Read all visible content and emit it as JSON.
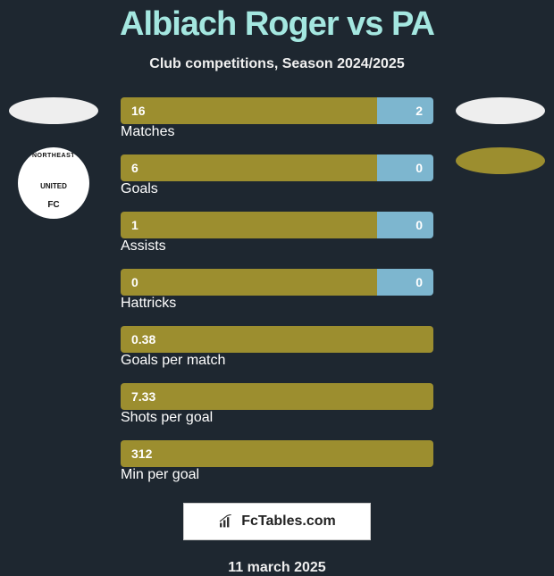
{
  "title": "Albiach Roger vs PA",
  "subtitle": "Club competitions, Season 2024/2025",
  "date": "11 march 2025",
  "footer_brand": "FcTables.com",
  "colors": {
    "background": "#1e2730",
    "title": "#a4e7e0",
    "bar_left": "#9c8e2f",
    "bar_right": "#7db6cf",
    "avatar_left": "#eeeeee",
    "avatar_right": "#eeeeee",
    "oval_right2": "#9c8e2f",
    "footer_bg": "#ffffff",
    "text": "#ffffff"
  },
  "left_club": {
    "name_top": "NORTHEAST",
    "name_mid": "UNITED",
    "name_bot": "FC"
  },
  "bars": [
    {
      "label": "Matches",
      "left": "16",
      "right": "2",
      "left_pct": 82
    },
    {
      "label": "Goals",
      "left": "6",
      "right": "0",
      "left_pct": 82
    },
    {
      "label": "Assists",
      "left": "1",
      "right": "0",
      "left_pct": 82
    },
    {
      "label": "Hattricks",
      "left": "0",
      "right": "0",
      "left_pct": 82
    },
    {
      "label": "Goals per match",
      "left": "0.38",
      "right": "",
      "left_pct": 100
    },
    {
      "label": "Shots per goal",
      "left": "7.33",
      "right": "",
      "left_pct": 100
    },
    {
      "label": "Min per goal",
      "left": "312",
      "right": "",
      "left_pct": 100
    }
  ]
}
